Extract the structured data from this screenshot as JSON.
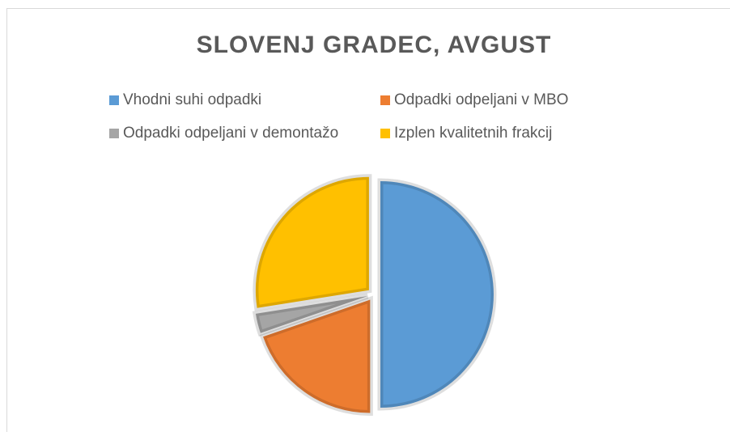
{
  "chart_data": {
    "type": "pie",
    "title": "SLOVENJ GRADEC, AVGUST",
    "categories": [
      "Vhodni suhi odpadki",
      "Odpadki odpeljani v MBO",
      "Odpadki odpeljani v demontažo",
      "Izplen kvalitetnih frakcij"
    ],
    "values": [
      50,
      19.7,
      2.8,
      27.5
    ],
    "colors": [
      "#5b9bd5",
      "#ed7d31",
      "#a5a5a5",
      "#ffc000"
    ],
    "legend": "top"
  }
}
